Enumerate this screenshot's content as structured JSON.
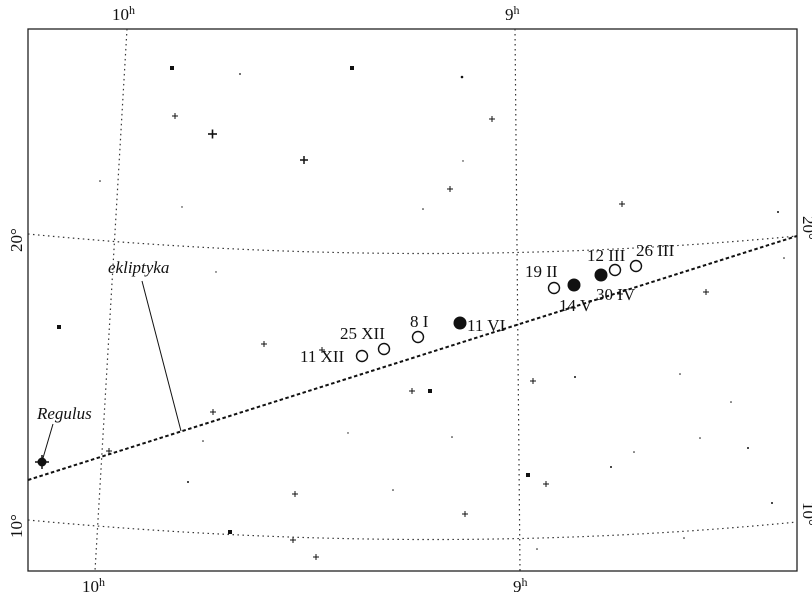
{
  "chart_data": {
    "type": "scatter",
    "ra_labels": {
      "top_left": "10",
      "top_right": "9",
      "bottom_left": "10",
      "bottom_right": "9",
      "unit": "h"
    },
    "dec_labels": {
      "upper": "20°",
      "lower": "10°"
    },
    "ecliptic_label": "ekliptyka",
    "regulus_label": "Regulus",
    "observations": [
      {
        "date": "11 XII",
        "phase": "open"
      },
      {
        "date": "25 XII",
        "phase": "open"
      },
      {
        "date": "8 I",
        "phase": "open"
      },
      {
        "date": "19 II",
        "phase": "open"
      },
      {
        "date": "12 III",
        "phase": "open"
      },
      {
        "date": "26 III",
        "phase": "open"
      },
      {
        "date": "30 IV",
        "phase": "filled"
      },
      {
        "date": "14 V",
        "phase": "filled"
      },
      {
        "date": "11 VI",
        "phase": "filled"
      }
    ]
  }
}
